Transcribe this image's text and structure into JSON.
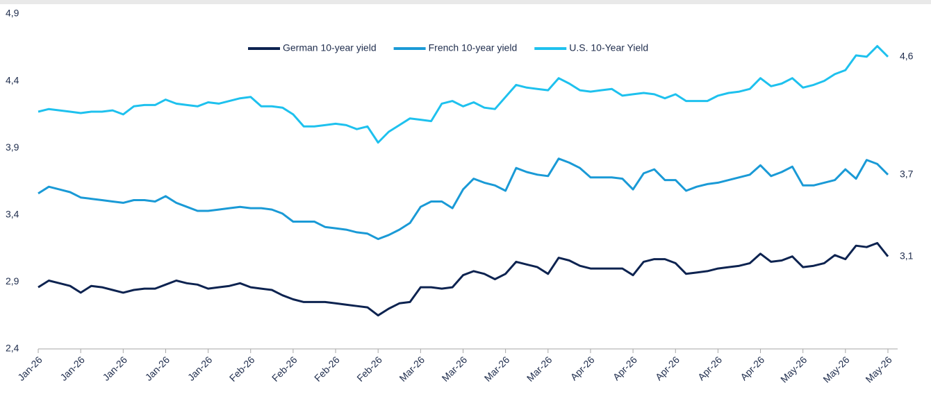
{
  "chart_data": {
    "type": "line",
    "categories": [
      "Jan-26",
      null,
      null,
      null,
      "Jan-26",
      null,
      null,
      null,
      "Jan-26",
      null,
      null,
      null,
      "Jan-26",
      null,
      null,
      null,
      "Jan-26",
      null,
      null,
      null,
      "Feb-26",
      null,
      null,
      null,
      "Feb-26",
      null,
      null,
      null,
      "Feb-26",
      null,
      null,
      null,
      "Feb-26",
      null,
      null,
      null,
      "Mar-26",
      null,
      null,
      null,
      "Mar-26",
      null,
      null,
      null,
      "Mar-26",
      null,
      null,
      null,
      "Mar-26",
      null,
      null,
      null,
      "Apr-26",
      null,
      null,
      null,
      "Apr-26",
      null,
      null,
      null,
      "Apr-26",
      null,
      null,
      null,
      "Apr-26",
      null,
      null,
      null,
      "Apr-26",
      null,
      null,
      null,
      "May-26",
      null,
      null,
      null,
      "May-26",
      null,
      null,
      null,
      "May-26"
    ],
    "series": [
      {
        "name": "German 10-year yield",
        "color": "#0d2350",
        "values": [
          2.86,
          2.91,
          2.89,
          2.87,
          2.82,
          2.87,
          2.86,
          2.84,
          2.82,
          2.84,
          2.85,
          2.85,
          2.88,
          2.91,
          2.89,
          2.88,
          2.85,
          2.86,
          2.87,
          2.89,
          2.86,
          2.85,
          2.84,
          2.8,
          2.77,
          2.75,
          2.75,
          2.75,
          2.74,
          2.73,
          2.72,
          2.71,
          2.65,
          2.7,
          2.74,
          2.75,
          2.86,
          2.86,
          2.85,
          2.86,
          2.95,
          2.98,
          2.96,
          2.92,
          2.96,
          3.05,
          3.03,
          3.01,
          2.96,
          3.08,
          3.06,
          3.02,
          3.0,
          3.0,
          3.0,
          3.0,
          2.95,
          3.05,
          3.07,
          3.07,
          3.04,
          2.96,
          2.97,
          2.98,
          3.0,
          3.01,
          3.02,
          3.04,
          3.11,
          3.05,
          3.06,
          3.09,
          3.01,
          3.02,
          3.04,
          3.1,
          3.07,
          3.17,
          3.16,
          3.19,
          3.09
        ],
        "value_labels": [
          null,
          null,
          null,
          null,
          null,
          null,
          null,
          null,
          null,
          null,
          null,
          null,
          null,
          null,
          null,
          null,
          null,
          null,
          null,
          null,
          null,
          null,
          null,
          null,
          null,
          null,
          null,
          null,
          null,
          null,
          null,
          null,
          null,
          null,
          null,
          null,
          null,
          null,
          null,
          null,
          null,
          null,
          null,
          null,
          null,
          null,
          null,
          null,
          null,
          null,
          null,
          null,
          null,
          null,
          null,
          null,
          null,
          null,
          null,
          null,
          null,
          null,
          null,
          null,
          null,
          null,
          null,
          null,
          null,
          null,
          null,
          null,
          null,
          null,
          null,
          null,
          null,
          null,
          null,
          null,
          "3,1"
        ]
      },
      {
        "name": "French 10-year yield",
        "color": "#1a9ad6",
        "values": [
          3.56,
          3.61,
          3.59,
          3.57,
          3.53,
          3.52,
          3.51,
          3.5,
          3.49,
          3.51,
          3.51,
          3.5,
          3.54,
          3.49,
          3.46,
          3.43,
          3.43,
          3.44,
          3.45,
          3.46,
          3.45,
          3.45,
          3.44,
          3.41,
          3.35,
          3.35,
          3.35,
          3.31,
          3.3,
          3.29,
          3.27,
          3.26,
          3.22,
          3.25,
          3.29,
          3.34,
          3.46,
          3.5,
          3.5,
          3.45,
          3.59,
          3.67,
          3.64,
          3.62,
          3.58,
          3.75,
          3.72,
          3.7,
          3.69,
          3.82,
          3.79,
          3.75,
          3.68,
          3.68,
          3.68,
          3.67,
          3.59,
          3.71,
          3.74,
          3.66,
          3.66,
          3.58,
          3.61,
          3.63,
          3.64,
          3.66,
          3.68,
          3.7,
          3.77,
          3.69,
          3.72,
          3.76,
          3.62,
          3.62,
          3.64,
          3.66,
          3.74,
          3.67,
          3.81,
          3.78,
          3.7
        ],
        "value_labels": [
          null,
          null,
          null,
          null,
          null,
          null,
          null,
          null,
          null,
          null,
          null,
          null,
          null,
          null,
          null,
          null,
          null,
          null,
          null,
          null,
          null,
          null,
          null,
          null,
          null,
          null,
          null,
          null,
          null,
          null,
          null,
          null,
          null,
          null,
          null,
          null,
          null,
          null,
          null,
          null,
          null,
          null,
          null,
          null,
          null,
          null,
          null,
          null,
          null,
          null,
          null,
          null,
          null,
          null,
          null,
          null,
          null,
          null,
          null,
          null,
          null,
          null,
          null,
          null,
          null,
          null,
          null,
          null,
          null,
          null,
          null,
          null,
          null,
          null,
          null,
          null,
          null,
          null,
          null,
          null,
          "3,7"
        ]
      },
      {
        "name": "U.S. 10-Year Yield",
        "color": "#1ec1ee",
        "values": [
          4.17,
          4.19,
          4.18,
          4.17,
          4.16,
          4.17,
          4.17,
          4.18,
          4.15,
          4.21,
          4.22,
          4.22,
          4.26,
          4.23,
          4.22,
          4.21,
          4.24,
          4.23,
          4.25,
          4.27,
          4.28,
          4.21,
          4.21,
          4.2,
          4.15,
          4.06,
          4.06,
          4.07,
          4.08,
          4.07,
          4.04,
          4.06,
          3.94,
          4.02,
          4.07,
          4.12,
          4.11,
          4.1,
          4.23,
          4.25,
          4.21,
          4.24,
          4.2,
          4.19,
          4.28,
          4.37,
          4.35,
          4.34,
          4.33,
          4.42,
          4.38,
          4.33,
          4.32,
          4.33,
          4.34,
          4.29,
          4.3,
          4.31,
          4.3,
          4.27,
          4.3,
          4.25,
          4.25,
          4.25,
          4.29,
          4.31,
          4.32,
          4.34,
          4.42,
          4.36,
          4.38,
          4.42,
          4.35,
          4.37,
          4.4,
          4.45,
          4.48,
          4.59,
          4.58,
          4.66,
          4.58
        ],
        "value_labels": [
          null,
          null,
          null,
          null,
          null,
          null,
          null,
          null,
          null,
          null,
          null,
          null,
          null,
          null,
          null,
          null,
          null,
          null,
          null,
          null,
          null,
          null,
          null,
          null,
          null,
          null,
          null,
          null,
          null,
          null,
          null,
          null,
          null,
          null,
          null,
          null,
          null,
          null,
          null,
          null,
          null,
          null,
          null,
          null,
          null,
          null,
          null,
          null,
          null,
          null,
          null,
          null,
          null,
          null,
          null,
          null,
          null,
          null,
          null,
          null,
          null,
          null,
          null,
          null,
          null,
          null,
          null,
          null,
          null,
          null,
          null,
          null,
          null,
          null,
          null,
          null,
          null,
          null,
          null,
          null,
          "4,6"
        ]
      }
    ],
    "ylim": [
      2.4,
      4.9
    ],
    "yticks": [
      {
        "value": 2.4,
        "label": "2,4"
      },
      {
        "value": 2.9,
        "label": "2,9"
      },
      {
        "value": 3.4,
        "label": "3,4"
      },
      {
        "value": 3.9,
        "label": "3,9"
      },
      {
        "value": 4.4,
        "label": "4,4"
      },
      {
        "value": 4.9,
        "label": "4,9"
      }
    ],
    "grid": false,
    "legend": "top"
  }
}
